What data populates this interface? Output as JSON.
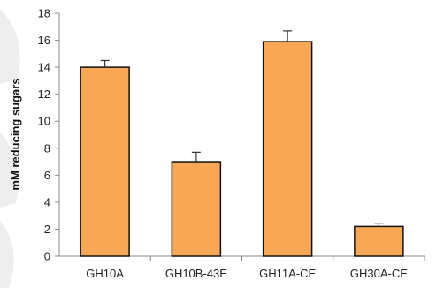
{
  "chart_data": {
    "type": "bar",
    "categories": [
      "GH10A",
      "GH10B-43E",
      "GH11A-CE",
      "GH30A-CE"
    ],
    "values": [
      14.0,
      7.0,
      15.9,
      2.2
    ],
    "errors": [
      0.5,
      0.7,
      0.8,
      0.2
    ],
    "title": "",
    "xlabel": "",
    "ylabel": "mM reducing sugars",
    "ylim": [
      0,
      18
    ],
    "yticks": [
      0,
      2,
      4,
      6,
      8,
      10,
      12,
      14,
      16,
      18
    ],
    "grid": false,
    "legend": "none",
    "bar_color": "#F8A755",
    "bar_edge_color": "#111111"
  }
}
